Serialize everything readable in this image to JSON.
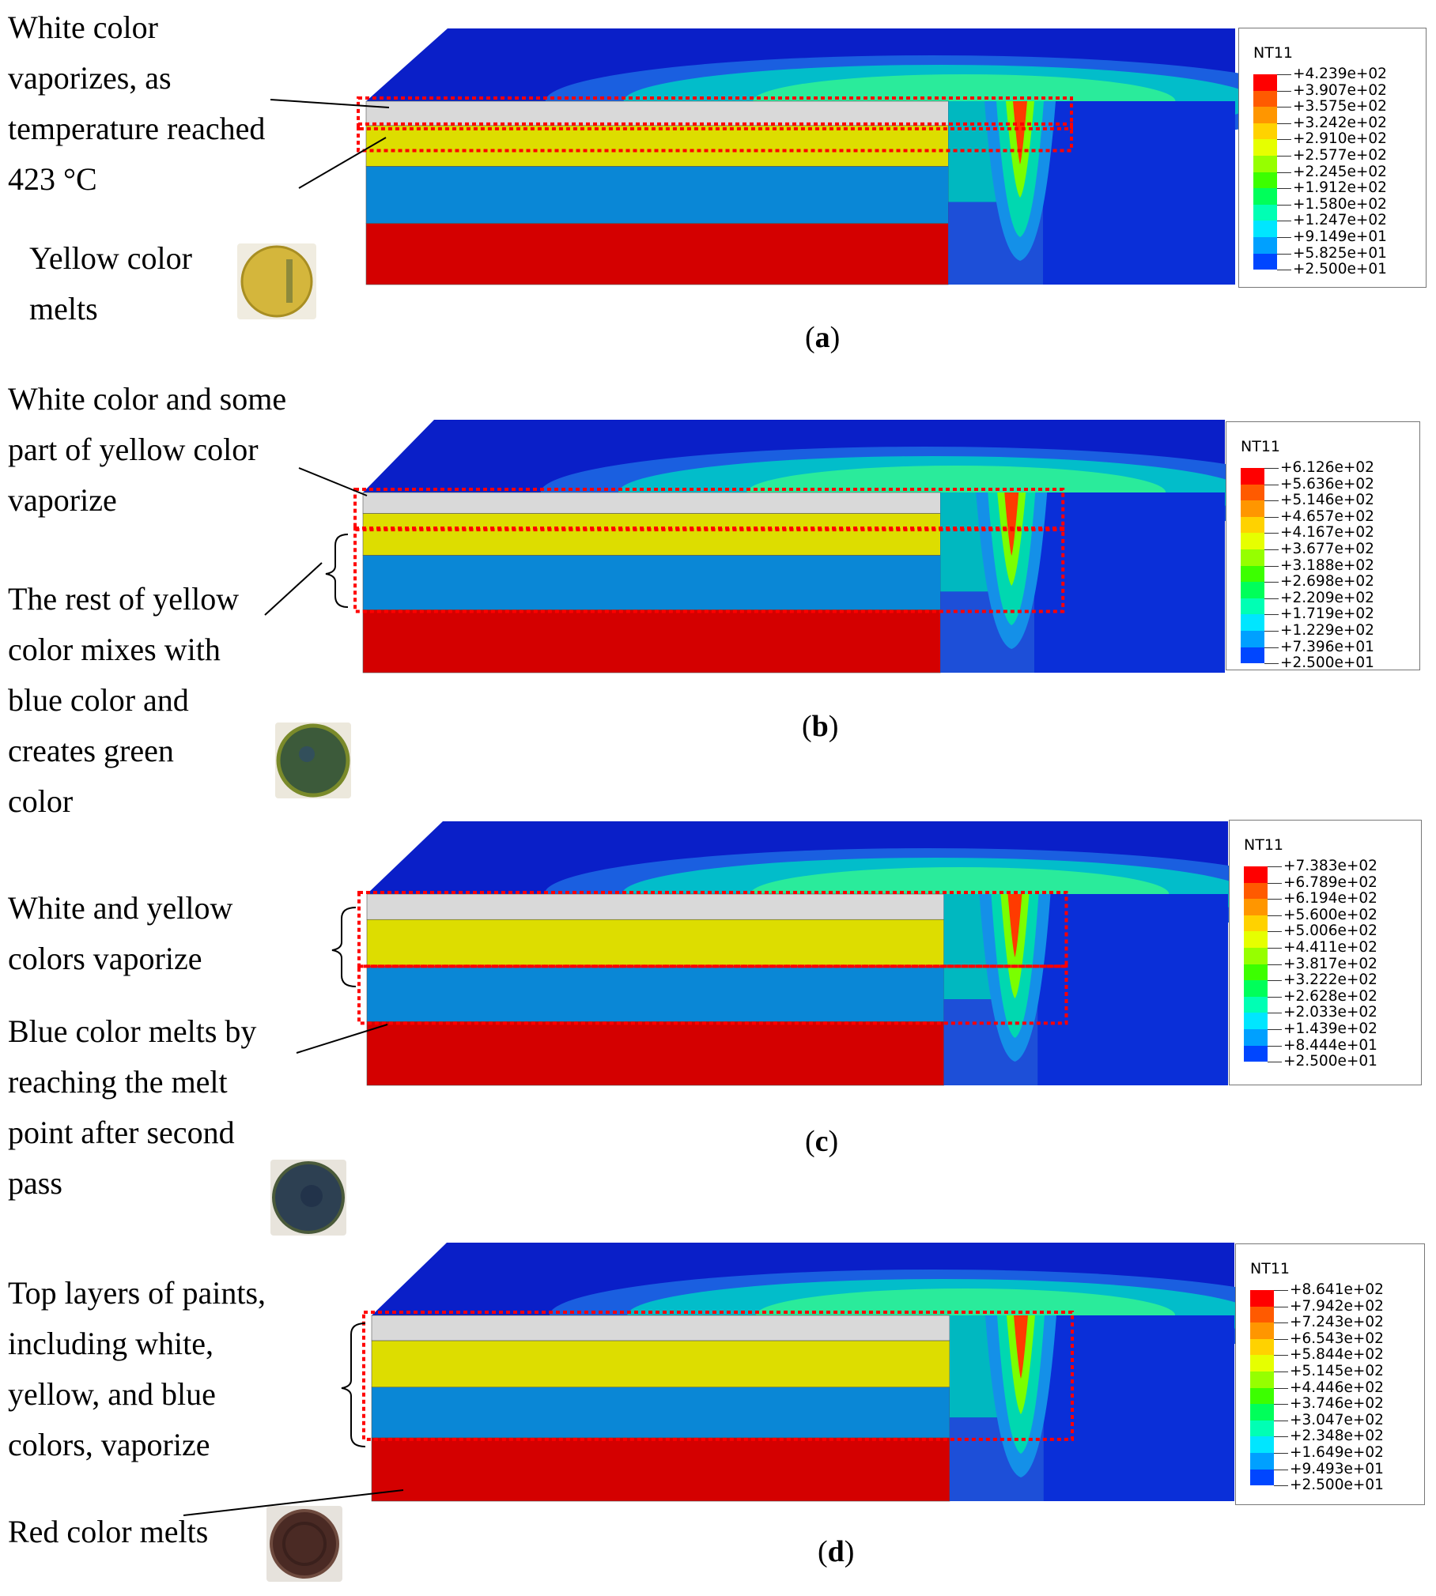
{
  "panels": [
    {
      "id": "a",
      "caption": "a",
      "annotations": [
        {
          "name": "white-vaporizes-note",
          "lines": [
            "White color",
            "vaporizes, as",
            "temperature reached",
            "423 °C"
          ]
        },
        {
          "name": "yellow-melts-note",
          "lines": [
            "Yellow   color",
            "melts"
          ]
        }
      ],
      "legend": {
        "title": "NT11",
        "values": [
          "+4.239e+02",
          "+3.907e+02",
          "+3.575e+02",
          "+3.242e+02",
          "+2.910e+02",
          "+2.577e+02",
          "+2.245e+02",
          "+1.912e+02",
          "+1.580e+02",
          "+1.247e+02",
          "+9.149e+01",
          "+5.825e+01",
          "+2.500e+01"
        ]
      },
      "swatch_color": "#d4b63c"
    },
    {
      "id": "b",
      "caption": "b",
      "annotations": [
        {
          "name": "white-yellow-vaporize-note",
          "lines": [
            "White color and some",
            "part  of  yellow  color",
            "vaporize"
          ]
        },
        {
          "name": "yellow-mixes-note",
          "lines": [
            "The rest of yellow",
            "color  mixes  with",
            "blue    color    and",
            "creates        green",
            "color"
          ]
        }
      ],
      "legend": {
        "title": "NT11",
        "values": [
          "+6.126e+02",
          "+5.636e+02",
          "+5.146e+02",
          "+4.657e+02",
          "+4.167e+02",
          "+3.677e+02",
          "+3.188e+02",
          "+2.698e+02",
          "+2.209e+02",
          "+1.719e+02",
          "+1.229e+02",
          "+7.396e+01",
          "+2.500e+01"
        ]
      },
      "swatch_color": "#3c5a3a"
    },
    {
      "id": "c",
      "caption": "c",
      "annotations": [
        {
          "name": "white-yellow-colors-vaporize-note",
          "lines": [
            "White   and   yellow",
            "colors vaporize"
          ]
        },
        {
          "name": "blue-melts-note",
          "lines": [
            "Blue color melts by",
            "reaching   the   melt",
            "point   after   second",
            "pass"
          ]
        }
      ],
      "legend": {
        "title": "NT11",
        "values": [
          "+7.383e+02",
          "+6.789e+02",
          "+6.194e+02",
          "+5.600e+02",
          "+5.006e+02",
          "+4.411e+02",
          "+3.817e+02",
          "+3.222e+02",
          "+2.628e+02",
          "+2.033e+02",
          "+1.439e+02",
          "+8.444e+01",
          "+2.500e+01"
        ]
      },
      "swatch_color": "#2d4052"
    },
    {
      "id": "d",
      "caption": "d",
      "annotations": [
        {
          "name": "top-layers-vaporize-note",
          "lines": [
            "Top layers of paints,",
            "including        white,",
            "yellow,     and     blue",
            "colors, vaporize"
          ]
        },
        {
          "name": "red-melts-note",
          "lines": [
            "Red color melts"
          ]
        }
      ],
      "legend": {
        "title": "NT11",
        "values": [
          "+8.641e+02",
          "+7.942e+02",
          "+7.243e+02",
          "+6.543e+02",
          "+5.844e+02",
          "+5.145e+02",
          "+4.446e+02",
          "+3.746e+02",
          "+3.047e+02",
          "+2.348e+02",
          "+1.649e+02",
          "+9.493e+01",
          "+2.500e+01"
        ]
      },
      "swatch_color": "#4a2a24"
    }
  ],
  "colormap": [
    "#ff0000",
    "#ff5a00",
    "#ff9600",
    "#ffd200",
    "#e6ff00",
    "#96ff00",
    "#3cff00",
    "#00ff5a",
    "#00ffb4",
    "#00e6ff",
    "#00a0ff",
    "#0046ff",
    "#0000ff"
  ],
  "layer_colors": {
    "white": "#d9d9d9",
    "yellow": "#dddd00",
    "blue": "#0a87d6",
    "red": "#d40000",
    "substrate": "#0a1fc8"
  }
}
